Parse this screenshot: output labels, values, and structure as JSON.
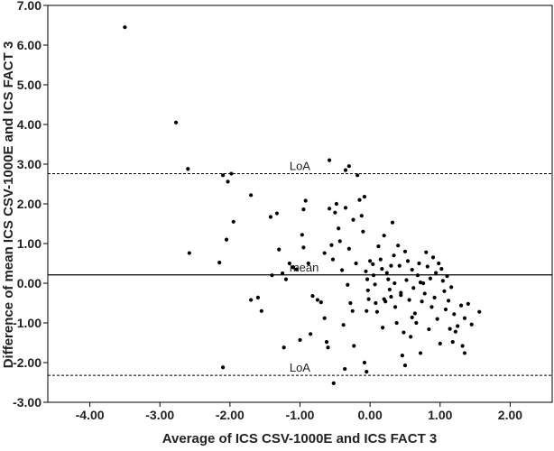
{
  "chart_data": {
    "type": "scatter",
    "title": "",
    "xlabel": "Average of ICS CSV-1000E and ICS FACT 3",
    "ylabel": "Difference of mean ICS CSV-1000E and ICS FACT 3",
    "xlim": [
      -4.6,
      2.6
    ],
    "ylim": [
      -3.0,
      7.0
    ],
    "x_ticks": [
      -4,
      -3,
      -2,
      -1,
      0,
      1,
      2
    ],
    "x_tick_labels": [
      "-4.00",
      "-3.00",
      "-2.00",
      "-1.00",
      "0.00",
      "1.00",
      "2.00"
    ],
    "y_ticks": [
      -3,
      -2,
      -1,
      0,
      1,
      2,
      3,
      4,
      5,
      6,
      7
    ],
    "y_tick_labels": [
      "-3.00",
      "-2.00",
      "-1.00",
      "0.00",
      "1.00",
      "2.00",
      "3.00",
      "4.00",
      "5.00",
      "6.00",
      "7.00"
    ],
    "grid": false,
    "reference_lines": [
      {
        "label": "LoA",
        "y": 2.76,
        "style": "dashed",
        "label_x": -1.15
      },
      {
        "label": "mean",
        "y": 0.21,
        "style": "solid",
        "label_x": -1.15
      },
      {
        "label": "LoA",
        "y": -2.32,
        "style": "dashed",
        "label_x": -1.15
      }
    ],
    "points": [
      [
        -3.5,
        6.45
      ],
      [
        -2.77,
        4.05
      ],
      [
        -2.6,
        2.88
      ],
      [
        -2.58,
        0.76
      ],
      [
        -2.1,
        2.72
      ],
      [
        -2.03,
        2.56
      ],
      [
        -1.98,
        2.76
      ],
      [
        -1.95,
        1.55
      ],
      [
        -2.05,
        1.1
      ],
      [
        -2.15,
        0.52
      ],
      [
        -2.1,
        -2.12
      ],
      [
        -1.7,
        2.22
      ],
      [
        -1.7,
        -0.42
      ],
      [
        -1.6,
        -0.36
      ],
      [
        -1.55,
        -0.7
      ],
      [
        -1.42,
        1.67
      ],
      [
        -1.33,
        1.76
      ],
      [
        -1.3,
        0.85
      ],
      [
        -1.25,
        0.25
      ],
      [
        -1.2,
        0.1
      ],
      [
        -1.15,
        0.5
      ],
      [
        -1.1,
        0.4
      ],
      [
        -1.05,
        0.35
      ],
      [
        -1.4,
        0.2
      ],
      [
        -1.23,
        -1.62
      ],
      [
        -1.0,
        -1.43
      ],
      [
        -0.92,
        2.08
      ],
      [
        -0.95,
        1.86
      ],
      [
        -0.97,
        1.22
      ],
      [
        -0.95,
        0.9
      ],
      [
        -0.88,
        0.5
      ],
      [
        -0.82,
        -0.32
      ],
      [
        -0.85,
        -1.28
      ],
      [
        -0.75,
        -0.42
      ],
      [
        -0.7,
        -0.48
      ],
      [
        -0.65,
        -0.88
      ],
      [
        -0.62,
        -1.48
      ],
      [
        -0.6,
        -1.62
      ],
      [
        -0.65,
        0.76
      ],
      [
        -0.58,
        1.88
      ],
      [
        -0.58,
        3.1
      ],
      [
        -0.55,
        0.96
      ],
      [
        -0.53,
        0.6
      ],
      [
        -0.5,
        1.78
      ],
      [
        -0.48,
        2.0
      ],
      [
        -0.45,
        1.38
      ],
      [
        -0.43,
        1.06
      ],
      [
        -0.4,
        0.33
      ],
      [
        -0.38,
        -1.05
      ],
      [
        -0.36,
        -2.16
      ],
      [
        -0.52,
        -2.52
      ],
      [
        -0.3,
        0.87
      ],
      [
        -0.32,
        -0.04
      ],
      [
        -0.28,
        -0.5
      ],
      [
        -0.25,
        -0.7
      ],
      [
        -0.23,
        -1.58
      ],
      [
        -0.35,
        1.9
      ],
      [
        -0.35,
        2.85
      ],
      [
        -0.3,
        2.95
      ],
      [
        -0.24,
        1.6
      ],
      [
        -0.2,
        0.5
      ],
      [
        -0.18,
        2.72
      ],
      [
        -0.15,
        2.1
      ],
      [
        -0.12,
        1.7
      ],
      [
        -0.1,
        1.3
      ],
      [
        -0.08,
        2.18
      ],
      [
        -0.06,
        0.3
      ],
      [
        -0.04,
        0.1
      ],
      [
        -0.03,
        -0.18
      ],
      [
        -0.02,
        -0.4
      ],
      [
        -0.05,
        -0.7
      ],
      [
        -0.08,
        -2.0
      ],
      [
        -0.05,
        -2.23
      ],
      [
        0.0,
        0.56
      ],
      [
        0.04,
        0.48
      ],
      [
        0.05,
        0.2
      ],
      [
        0.07,
        -0.03
      ],
      [
        0.08,
        -0.5
      ],
      [
        0.1,
        -0.72
      ],
      [
        0.12,
        0.93
      ],
      [
        0.15,
        0.6
      ],
      [
        0.17,
        0.36
      ],
      [
        0.18,
        -1.12
      ],
      [
        0.2,
        1.2
      ],
      [
        0.22,
        -0.46
      ],
      [
        0.24,
        0.26
      ],
      [
        0.26,
        0.1
      ],
      [
        0.28,
        -0.16
      ],
      [
        0.3,
        -0.34
      ],
      [
        0.32,
        1.53
      ],
      [
        0.34,
        0.7
      ],
      [
        0.35,
        0.0
      ],
      [
        0.36,
        -0.6
      ],
      [
        0.38,
        -1.0
      ],
      [
        0.4,
        0.95
      ],
      [
        0.42,
        0.44
      ],
      [
        0.44,
        -0.24
      ],
      [
        0.46,
        -1.82
      ],
      [
        0.48,
        -1.24
      ],
      [
        0.5,
        0.8
      ],
      [
        0.5,
        -2.07
      ],
      [
        0.52,
        0.08
      ],
      [
        0.54,
        0.56
      ],
      [
        0.56,
        -0.42
      ],
      [
        0.58,
        -1.35
      ],
      [
        0.6,
        0.34
      ],
      [
        0.62,
        -0.12
      ],
      [
        0.64,
        -0.76
      ],
      [
        0.66,
        -1.0
      ],
      [
        0.68,
        0.2
      ],
      [
        0.7,
        0.5
      ],
      [
        0.72,
        -1.76
      ],
      [
        0.74,
        -0.46
      ],
      [
        0.76,
        0.0
      ],
      [
        0.78,
        -0.26
      ],
      [
        0.8,
        0.78
      ],
      [
        0.82,
        0.42
      ],
      [
        0.84,
        -1.16
      ],
      [
        0.86,
        0.12
      ],
      [
        0.88,
        -0.6
      ],
      [
        0.9,
        0.65
      ],
      [
        0.92,
        -0.36
      ],
      [
        0.94,
        0.26
      ],
      [
        0.96,
        -0.9
      ],
      [
        0.98,
        0.5
      ],
      [
        1.0,
        -1.52
      ],
      [
        1.02,
        0.36
      ],
      [
        1.04,
        0.06
      ],
      [
        1.06,
        -0.2
      ],
      [
        1.08,
        -0.66
      ],
      [
        1.1,
        0.18
      ],
      [
        1.12,
        -0.44
      ],
      [
        1.14,
        -1.15
      ],
      [
        1.16,
        -0.1
      ],
      [
        1.18,
        -1.48
      ],
      [
        1.2,
        -0.78
      ],
      [
        1.22,
        -1.22
      ],
      [
        1.25,
        -1.08
      ],
      [
        1.3,
        -0.56
      ],
      [
        1.32,
        -1.58
      ],
      [
        1.35,
        -0.88
      ],
      [
        1.4,
        -0.52
      ],
      [
        1.45,
        -1.04
      ],
      [
        1.56,
        -0.72
      ],
      [
        1.35,
        -1.76
      ],
      [
        0.44,
        -0.3
      ],
      [
        0.6,
        -0.86
      ],
      [
        0.3,
        0.44
      ],
      [
        0.2,
        -0.4
      ],
      [
        0.72,
        0.02
      ]
    ]
  }
}
